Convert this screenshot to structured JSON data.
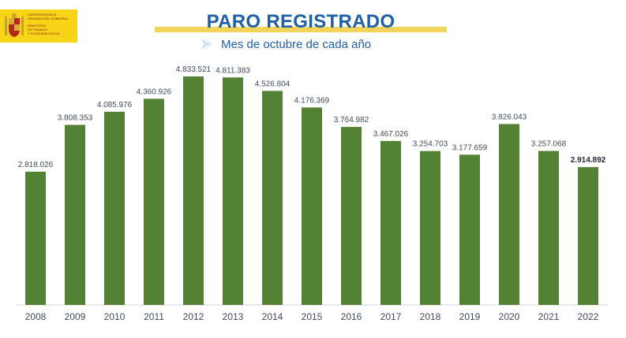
{
  "header": {
    "title": "PARO REGISTRADO",
    "subtitle": "Mes de octubre de cada año"
  },
  "logo": {
    "line1": "VICEPRESIDENCIA",
    "line2": "SEGUNDA DEL GOBIERNO",
    "line3": "MINISTERIO",
    "line4": "DE TRABAJO",
    "line5": "Y ECONOMÍA SOCIAL"
  },
  "colors": {
    "bar": "#548235",
    "title": "#1f5fa8",
    "accent": "#f2d45a"
  },
  "chart_data": {
    "type": "bar",
    "title": "PARO REGISTRADO",
    "subtitle": "Mes de octubre de cada año",
    "categories": [
      "2008",
      "2009",
      "2010",
      "2011",
      "2012",
      "2013",
      "2014",
      "2015",
      "2016",
      "2017",
      "2018",
      "2019",
      "2020",
      "2021",
      "2022"
    ],
    "values": [
      2818026,
      3808353,
      4085976,
      4360926,
      4833521,
      4811383,
      4526804,
      4176369,
      3764982,
      3467026,
      3254703,
      3177659,
      3826043,
      3257068,
      2914892
    ],
    "labels": [
      "2.818.026",
      "3.808.353",
      "4.085.976",
      "4.360.926",
      "4.833.521",
      "4.811.383",
      "4.526.804",
      "4.176.369",
      "3.764.982",
      "3.467.026",
      "3.254.703",
      "3.177.659",
      "3.826.043",
      "3.257.068",
      "2.914.892"
    ],
    "highlight_last": true,
    "ylim": [
      0,
      5000000
    ],
    "grid": false,
    "legend": "none"
  }
}
